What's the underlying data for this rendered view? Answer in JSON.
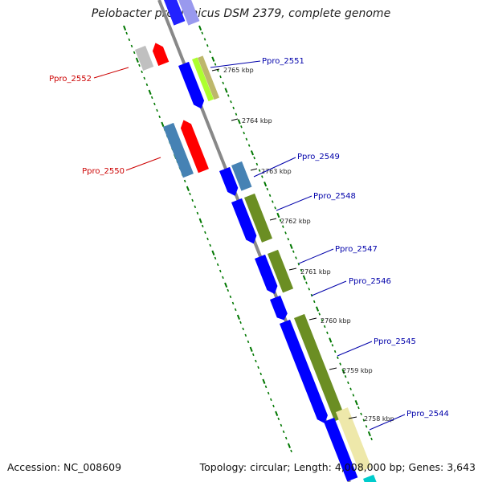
{
  "title": "Pelobacter propionicus DSM 2379, complete genome",
  "footer": {
    "accession": "Accession: NC_008609",
    "summary": "Topology: circular; Length: 4,008,000 bp; Genes: 3,643"
  },
  "ticks": [
    "2765 kbp",
    "2764 kbp",
    "2763 kbp",
    "2762 kbp",
    "2761 kbp",
    "2760 kbp",
    "2759 kbp",
    "2758 kbp"
  ],
  "genes": [
    {
      "label": "Ppro_2552",
      "strand": "reverse",
      "color": "#cc0000"
    },
    {
      "label": "Ppro_2551",
      "strand": "forward",
      "color": "#0000aa"
    },
    {
      "label": "Ppro_2550",
      "strand": "reverse",
      "color": "#cc0000"
    },
    {
      "label": "Ppro_2549",
      "strand": "forward",
      "color": "#0000aa"
    },
    {
      "label": "Ppro_2548",
      "strand": "forward",
      "color": "#0000aa"
    },
    {
      "label": "Ppro_2547",
      "strand": "forward",
      "color": "#0000aa"
    },
    {
      "label": "Ppro_2546",
      "strand": "forward",
      "color": "#0000aa"
    },
    {
      "label": "Ppro_2545",
      "strand": "forward",
      "color": "#0000aa"
    },
    {
      "label": "Ppro_2544",
      "strand": "forward",
      "color": "#0000aa"
    }
  ],
  "colors": {
    "backbone": "#888888",
    "forward_cds": "#0000ff",
    "reverse_cds": "#ff0000",
    "cog_green": "#6b8e23",
    "cog_steel": "#4682b4",
    "cog_khaki": "#eee8aa",
    "cog_lime": "#adff2f",
    "cog_gray": "#c0c0c0",
    "tick_green": "#007700"
  }
}
